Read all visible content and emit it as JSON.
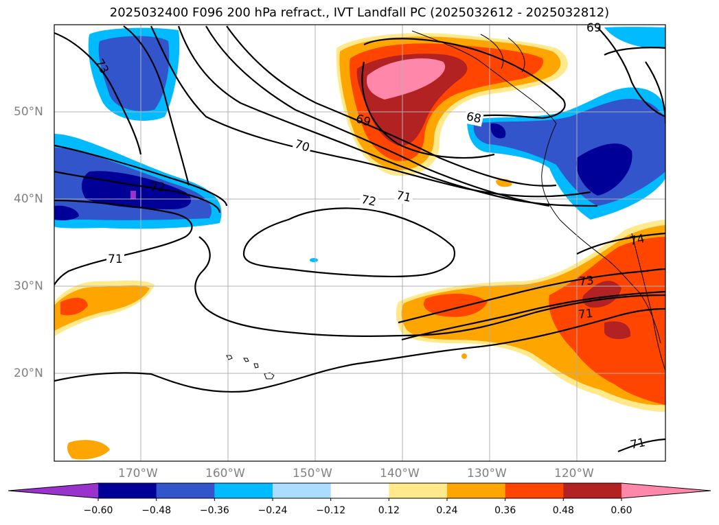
{
  "title": "2025032400 F096 200 hPa refract., IVT Landfall PC (2025032612 - 2025032812)",
  "lat_labels": [
    "50°N",
    "40°N",
    "30°N",
    "20°N"
  ],
  "lon_labels": [
    "170°W",
    "160°W",
    "150°W",
    "140°W",
    "130°W",
    "120°W"
  ],
  "contour_labels": [
    "73",
    "72",
    "71",
    "70",
    "72",
    "71",
    "69",
    "68",
    "69",
    "74",
    "73",
    "71",
    "71"
  ],
  "colorbar": {
    "ticks": [
      "−0.60",
      "−0.48",
      "−0.36",
      "−0.24",
      "−0.12",
      "0.12",
      "0.24",
      "0.36",
      "0.48",
      "0.60"
    ],
    "colors": [
      "#9933cc",
      "#000099",
      "#3355cc",
      "#00bbff",
      "#aaddff",
      "#ffffff",
      "#ffe98a",
      "#ffa500",
      "#ff4500",
      "#b22222",
      "#ff88aa"
    ]
  }
}
